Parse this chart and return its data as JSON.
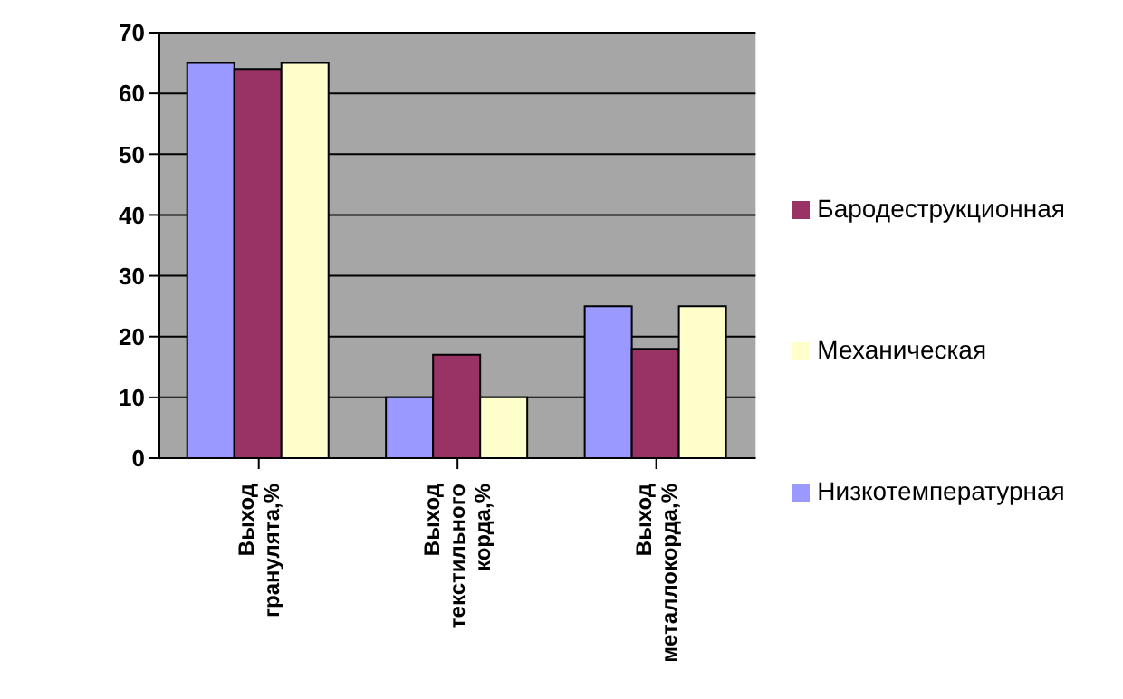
{
  "chart_data": {
    "type": "bar",
    "categories": [
      "Выход гранулята,%",
      "Выход текстильного корда,%",
      "Выход металлокорда,%"
    ],
    "series": [
      {
        "name": "Низкотемпературная",
        "color": "#9999ff",
        "values": [
          65,
          10,
          25
        ]
      },
      {
        "name": "Бародеструкционная",
        "color": "#993366",
        "values": [
          64,
          17,
          18
        ]
      },
      {
        "name": "Механическая",
        "color": "#ffffcc",
        "values": [
          65,
          10,
          25
        ]
      }
    ],
    "ylim": [
      0,
      70
    ],
    "yticks": [
      0,
      10,
      20,
      30,
      40,
      50,
      60,
      70
    ],
    "grid": "y",
    "legend": "right"
  }
}
